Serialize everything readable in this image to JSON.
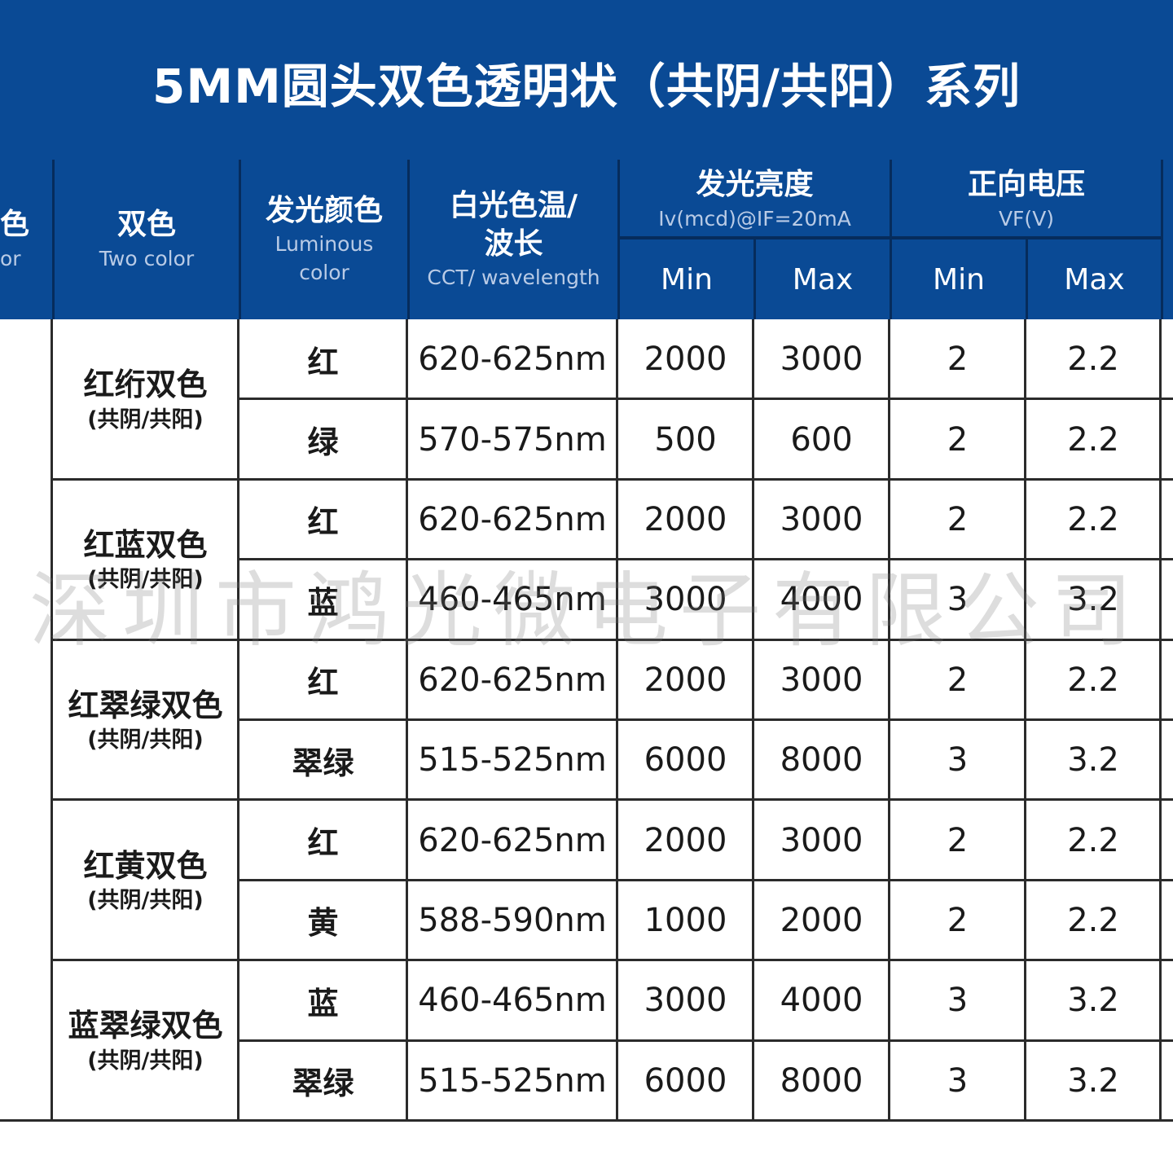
{
  "title": "5MM圆头双色透明状（共阴/共阳）系列",
  "header": {
    "col0": {
      "cn": "色",
      "en": "or"
    },
    "col1": {
      "cn": "双色",
      "en": "Two color"
    },
    "col2": {
      "cn": "发光颜色",
      "en1": "Luminous",
      "en2": "color"
    },
    "col3": {
      "cn1": "白光色温/",
      "cn2": "波长",
      "en": "CCT/ wavelength"
    },
    "col4": {
      "cn": "发光亮度",
      "en": "Iv(mcd)@IF=20mA",
      "min": "Min",
      "max": "Max"
    },
    "col5": {
      "cn": "正向电压",
      "en": "VF(V)",
      "min": "Min",
      "max": "Max"
    }
  },
  "groups": [
    {
      "name": "红绗双色",
      "sub": "(共阴/共阳)"
    },
    {
      "name": "红蓝双色",
      "sub": "(共阴/共阳)"
    },
    {
      "name": "红翠绿双色",
      "sub": "(共阴/共阳)"
    },
    {
      "name": "红黄双色",
      "sub": "(共阴/共阳)"
    },
    {
      "name": "蓝翠绿双色",
      "sub": "(共阴/共阳)"
    }
  ],
  "rows": [
    {
      "color": "红",
      "wavelength": "620-625nm",
      "iv_min": "2000",
      "iv_max": "3000",
      "vf_min": "2",
      "vf_max": "2.2"
    },
    {
      "color": "绿",
      "wavelength": "570-575nm",
      "iv_min": "500",
      "iv_max": "600",
      "vf_min": "2",
      "vf_max": "2.2"
    },
    {
      "color": "红",
      "wavelength": "620-625nm",
      "iv_min": "2000",
      "iv_max": "3000",
      "vf_min": "2",
      "vf_max": "2.2"
    },
    {
      "color": "蓝",
      "wavelength": "460-465nm",
      "iv_min": "3000",
      "iv_max": "4000",
      "vf_min": "3",
      "vf_max": "3.2"
    },
    {
      "color": "红",
      "wavelength": "620-625nm",
      "iv_min": "2000",
      "iv_max": "3000",
      "vf_min": "2",
      "vf_max": "2.2"
    },
    {
      "color": "翠绿",
      "wavelength": "515-525nm",
      "iv_min": "6000",
      "iv_max": "8000",
      "vf_min": "3",
      "vf_max": "3.2"
    },
    {
      "color": "红",
      "wavelength": "620-625nm",
      "iv_min": "2000",
      "iv_max": "3000",
      "vf_min": "2",
      "vf_max": "2.2"
    },
    {
      "color": "黄",
      "wavelength": "588-590nm",
      "iv_min": "1000",
      "iv_max": "2000",
      "vf_min": "2",
      "vf_max": "2.2"
    },
    {
      "color": "蓝",
      "wavelength": "460-465nm",
      "iv_min": "3000",
      "iv_max": "4000",
      "vf_min": "3",
      "vf_max": "3.2"
    },
    {
      "color": "翠绿",
      "wavelength": "515-525nm",
      "iv_min": "6000",
      "iv_max": "8000",
      "vf_min": "3",
      "vf_max": "3.2"
    }
  ],
  "watermark": "深圳市鸿光微电子有限公司"
}
